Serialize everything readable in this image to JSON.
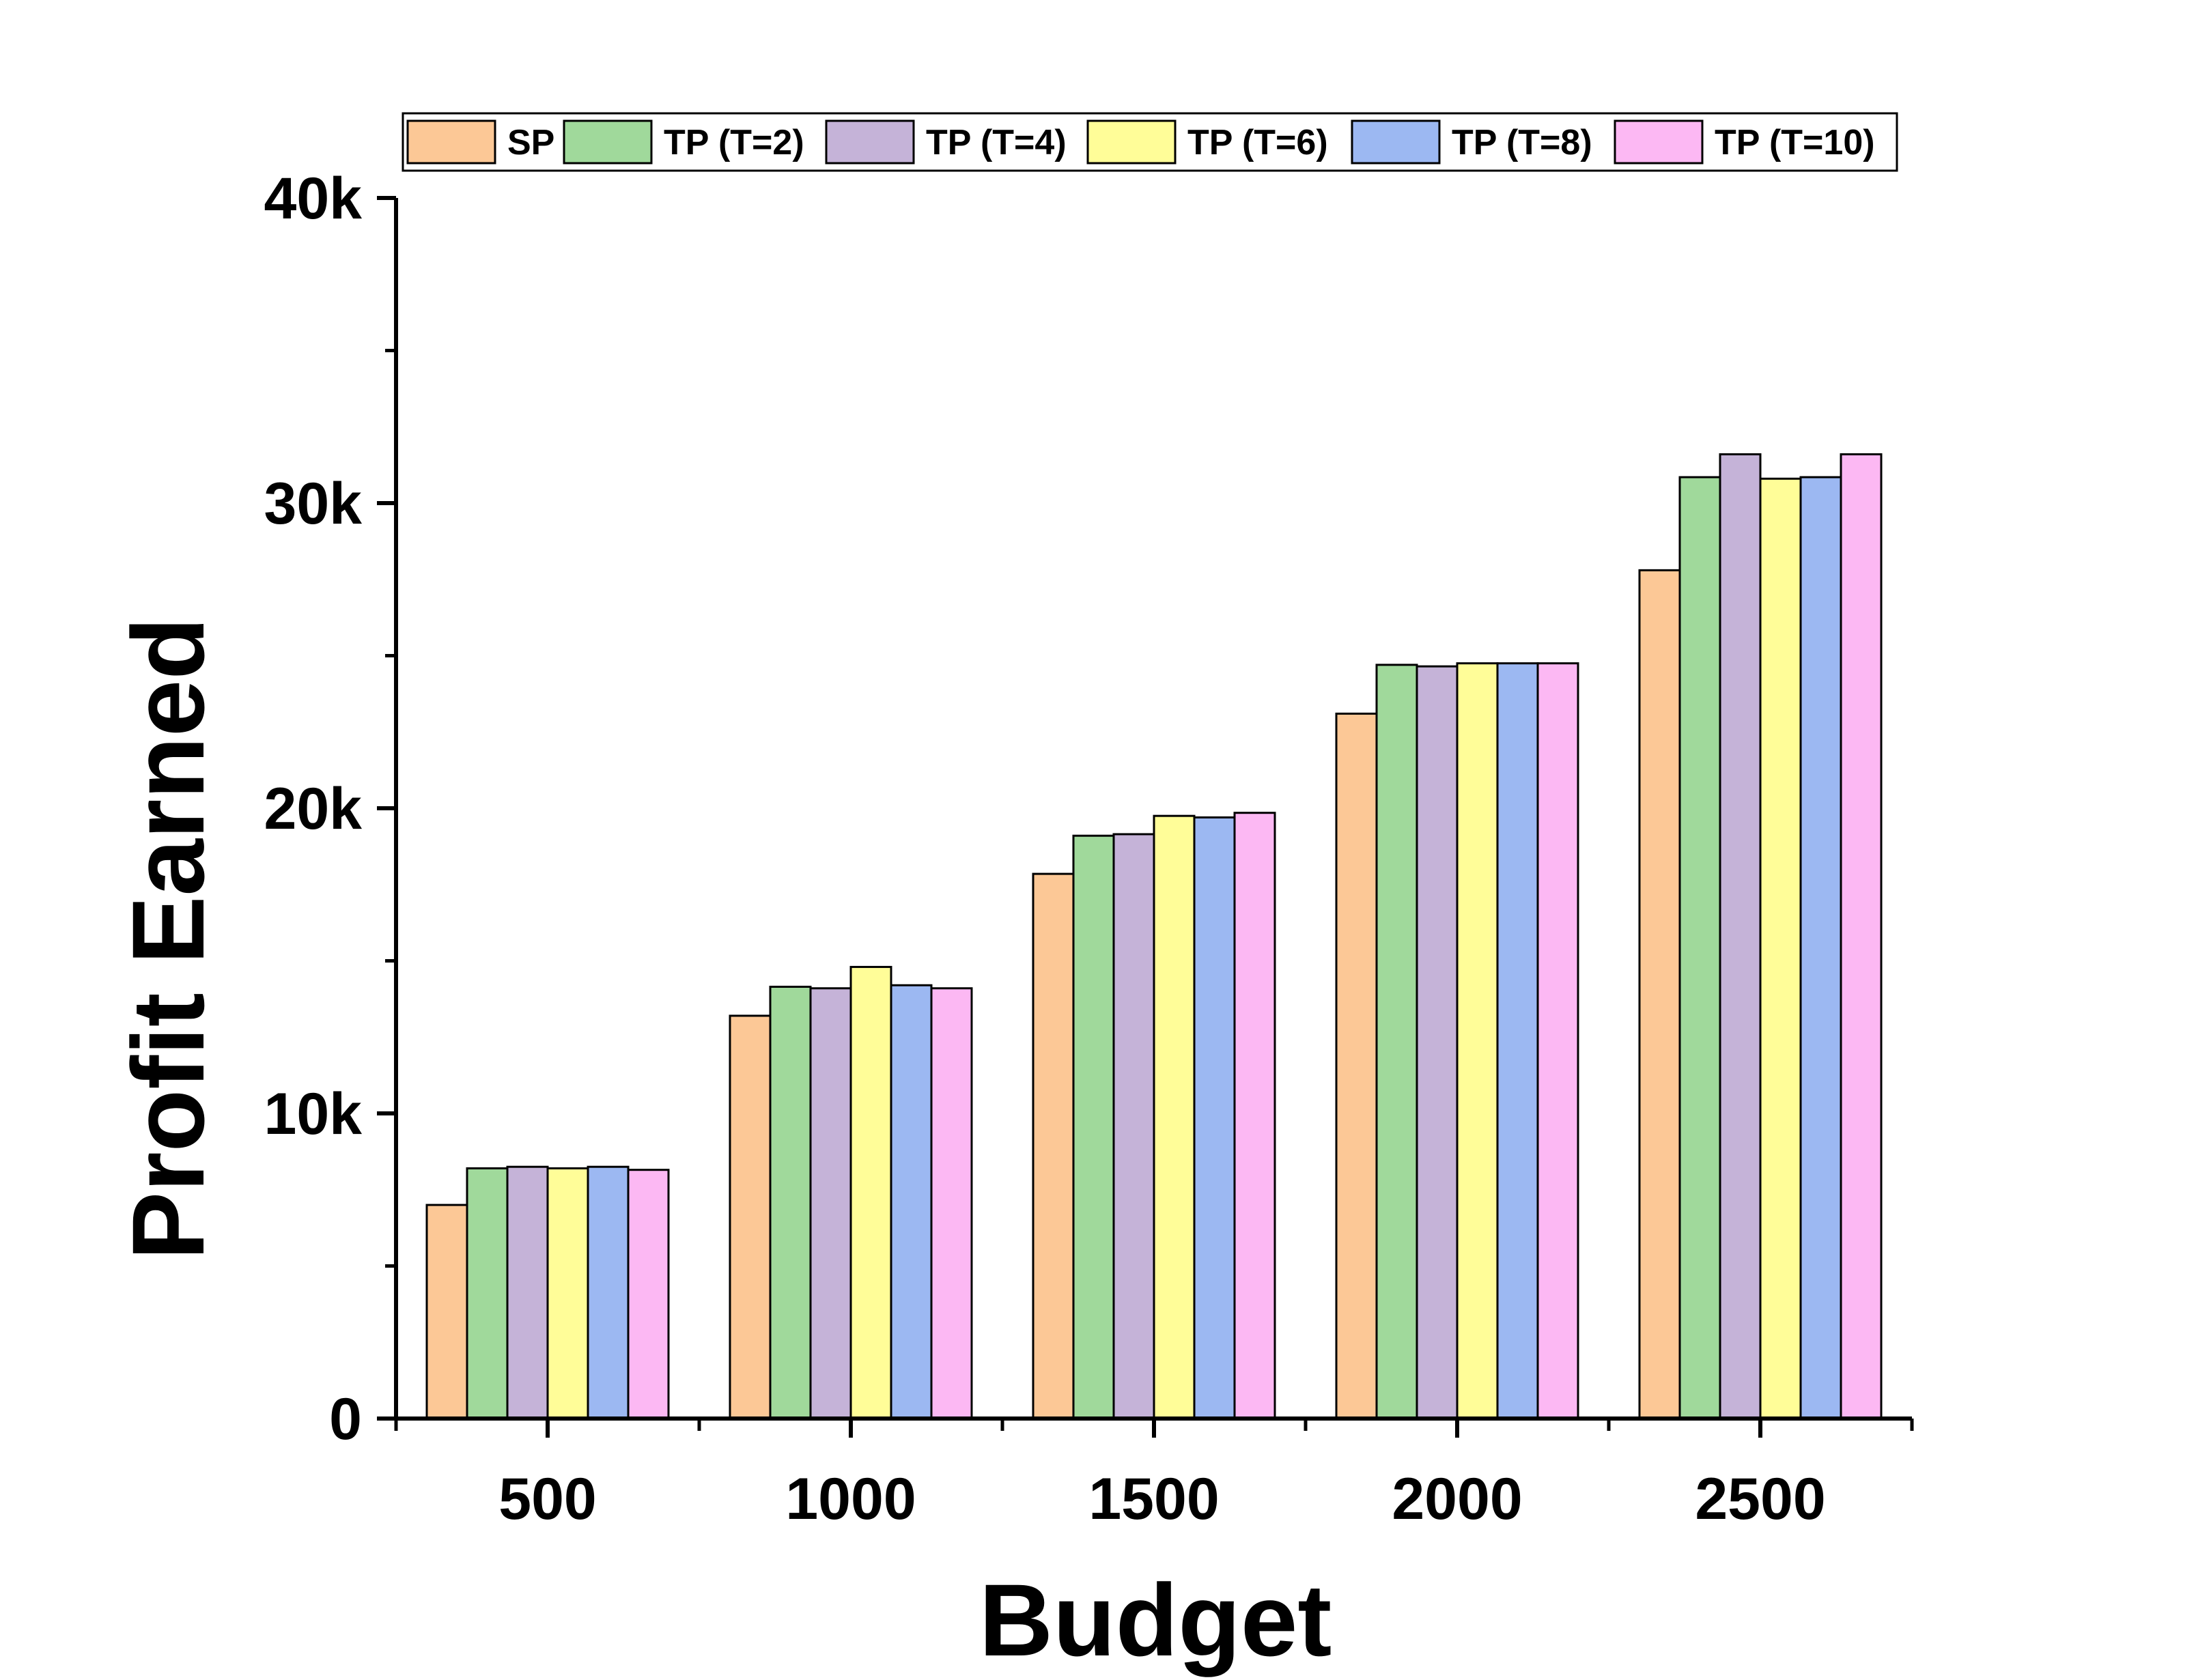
{
  "chart_data": {
    "type": "bar",
    "title": "",
    "xlabel": "Budget",
    "ylabel": "Profit Earned",
    "categories": [
      "500",
      "1000",
      "1500",
      "2000",
      "2500"
    ],
    "ylim": [
      0,
      40000
    ],
    "y_ticks": [
      {
        "value": 0,
        "label": "0"
      },
      {
        "value": 10000,
        "label": "10k"
      },
      {
        "value": 20000,
        "label": "20k"
      },
      {
        "value": 30000,
        "label": "30k"
      },
      {
        "value": 40000,
        "label": "40k"
      }
    ],
    "y_minor_ticks": [
      5000,
      15000,
      25000,
      35000
    ],
    "grid": false,
    "legend_position": "top",
    "series": [
      {
        "name": "SP",
        "color": "#FCC896",
        "values": [
          7000,
          13200,
          17850,
          23100,
          27800
        ]
      },
      {
        "name": "TP (T=2)",
        "color": "#A0D99B",
        "values": [
          8200,
          14150,
          19100,
          24700,
          30850
        ]
      },
      {
        "name": "TP (T=4)",
        "color": "#C5B3D8",
        "values": [
          8250,
          14100,
          19150,
          24650,
          31600
        ]
      },
      {
        "name": "TP (T=6)",
        "color": "#FFFD98",
        "values": [
          8200,
          14800,
          19750,
          24750,
          30800
        ]
      },
      {
        "name": "TP (T=8)",
        "color": "#9CB8F2",
        "values": [
          8250,
          14200,
          19700,
          24750,
          30850
        ]
      },
      {
        "name": "TP (T=10)",
        "color": "#FCB8F3",
        "values": [
          8150,
          14100,
          19850,
          24750,
          31600
        ]
      }
    ]
  }
}
